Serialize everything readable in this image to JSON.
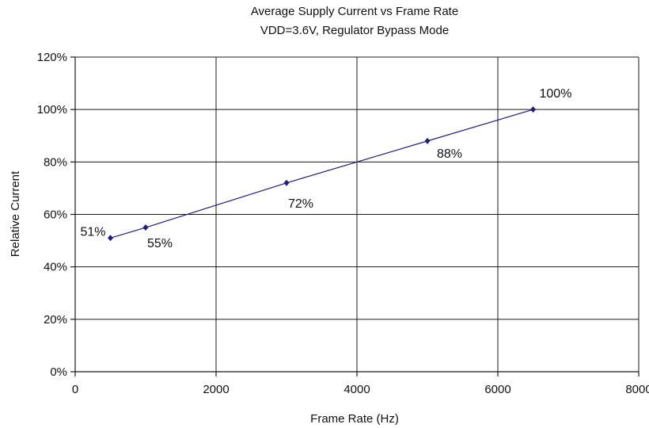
{
  "chart_data": {
    "type": "line",
    "title": "Average Supply Current vs Frame Rate",
    "subtitle": "VDD=3.6V, Regulator Bypass Mode",
    "xlabel": "Frame Rate (Hz)",
    "ylabel": "Relative Current",
    "xlim": [
      0,
      8000
    ],
    "ylim": [
      0,
      120
    ],
    "x_ticks": [
      0,
      2000,
      4000,
      6000,
      8000
    ],
    "x_tick_labels": [
      "0",
      "2000",
      "4000",
      "6000",
      "8000"
    ],
    "y_ticks": [
      0,
      20,
      40,
      60,
      80,
      100,
      120
    ],
    "y_tick_labels": [
      "0%",
      "20%",
      "40%",
      "60%",
      "80%",
      "100%",
      "120%"
    ],
    "grid": true,
    "legend": "none",
    "series": [
      {
        "color": "#1f1f7a",
        "x": [
          500,
          1000,
          3000,
          5000,
          6500
        ],
        "y": [
          51,
          55,
          72,
          88,
          100
        ],
        "labels": [
          "51%",
          "55%",
          "72%",
          "88%",
          "100%"
        ]
      }
    ]
  }
}
